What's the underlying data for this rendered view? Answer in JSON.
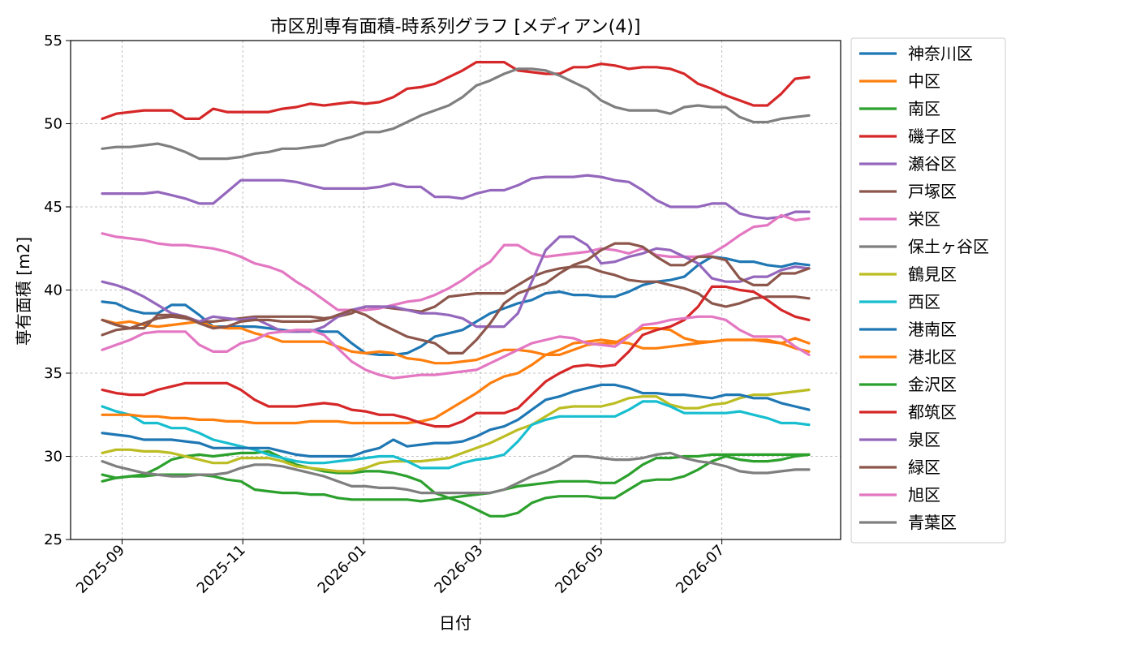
{
  "chart_data": {
    "type": "line",
    "title": "市区別専有面積-時系列グラフ [メディアン(4)]",
    "xlabel": "日付",
    "ylabel": "専有面積 [m2]",
    "ylim": [
      25,
      55
    ],
    "xlim": [
      "2025-08-06",
      "2026-08-30"
    ],
    "yticks": [
      25,
      30,
      35,
      40,
      45,
      50,
      55
    ],
    "xticks": [
      "2025-09",
      "2025-11",
      "2026-01",
      "2026-03",
      "2026-05",
      "2026-07"
    ],
    "grid": true,
    "legend_position": "outside-right",
    "x_start": "2025-08-22",
    "x_step_days": 7,
    "series": [
      {
        "name": "神奈川区",
        "color": "#1f77b4",
        "values": [
          39.3,
          39.2,
          38.8,
          38.6,
          38.6,
          39.1,
          39.1,
          38.5,
          37.8,
          37.8,
          37.8,
          37.8,
          37.7,
          37.6,
          37.5,
          37.6,
          37.5,
          37.5,
          36.8,
          36.2,
          36.1,
          36.1,
          36.2,
          36.6,
          37.2,
          37.4,
          37.6,
          38.1,
          38.6,
          38.9,
          39.2,
          39.4,
          39.8,
          39.9,
          39.7,
          39.7,
          39.6,
          39.6,
          39.9,
          40.3,
          40.5,
          40.6,
          40.8,
          41.5,
          42.0,
          41.9,
          41.7,
          41.7,
          41.5,
          41.4,
          41.6,
          41.5
        ]
      },
      {
        "name": "中区",
        "color": "#ff7f0e",
        "values": [
          38.2,
          38.0,
          38.1,
          37.9,
          37.8,
          37.9,
          38.0,
          38.1,
          37.8,
          37.7,
          37.7,
          37.4,
          37.2,
          36.9,
          36.9,
          36.9,
          36.9,
          36.6,
          36.3,
          36.2,
          36.3,
          36.2,
          35.9,
          35.8,
          35.6,
          35.6,
          35.7,
          35.8,
          36.1,
          36.4,
          36.4,
          36.3,
          36.1,
          36.1,
          36.4,
          36.7,
          36.8,
          36.8,
          37.3,
          37.7,
          37.7,
          37.6,
          37.1,
          36.9,
          36.9,
          37.0,
          37.0,
          37.0,
          36.9,
          36.8,
          37.1,
          36.8
        ]
      },
      {
        "name": "南区",
        "color": "#2ca02c",
        "values": [
          28.9,
          28.7,
          28.8,
          28.9,
          29.3,
          29.8,
          30.0,
          30.1,
          30.0,
          30.1,
          30.2,
          30.2,
          30.3,
          29.9,
          29.5,
          29.3,
          29.1,
          29.0,
          29.0,
          29.1,
          29.1,
          29.0,
          28.8,
          28.5,
          27.8,
          27.5,
          27.2,
          26.8,
          26.4,
          26.4,
          26.6,
          27.2,
          27.5,
          27.6,
          27.6,
          27.6,
          27.5,
          27.5,
          28.0,
          28.5,
          28.6,
          28.6,
          28.8,
          29.2,
          29.7,
          30.0,
          29.8,
          29.7,
          29.7,
          29.8,
          30.0,
          30.1
        ]
      },
      {
        "name": "磯子区",
        "color": "#d62728",
        "values": [
          50.3,
          50.6,
          50.7,
          50.8,
          50.8,
          50.8,
          50.3,
          50.3,
          50.9,
          50.7,
          50.7,
          50.7,
          50.7,
          50.9,
          51.0,
          51.2,
          51.1,
          51.2,
          51.3,
          51.2,
          51.3,
          51.6,
          52.1,
          52.2,
          52.4,
          52.8,
          53.2,
          53.7,
          53.7,
          53.7,
          53.2,
          53.1,
          53.0,
          53.0,
          53.4,
          53.4,
          53.6,
          53.5,
          53.3,
          53.4,
          53.4,
          53.3,
          53.0,
          52.4,
          52.1,
          51.7,
          51.4,
          51.1,
          51.1,
          51.8,
          52.7,
          52.8
        ]
      },
      {
        "name": "瀬谷区",
        "color": "#9467bd",
        "values": [
          45.8,
          45.8,
          45.8,
          45.8,
          45.9,
          45.7,
          45.5,
          45.2,
          45.2,
          45.9,
          46.6,
          46.6,
          46.6,
          46.6,
          46.5,
          46.3,
          46.1,
          46.1,
          46.1,
          46.1,
          46.2,
          46.4,
          46.2,
          46.2,
          45.6,
          45.6,
          45.5,
          45.8,
          46.0,
          46.0,
          46.3,
          46.7,
          46.8,
          46.8,
          46.8,
          46.9,
          46.8,
          46.6,
          46.5,
          46.0,
          45.4,
          45.0,
          45.0,
          45.0,
          45.2,
          45.2,
          44.6,
          44.4,
          44.3,
          44.4,
          44.7,
          44.7
        ]
      },
      {
        "name": "戸塚区",
        "color": "#8c564b",
        "values": [
          37.3,
          37.6,
          37.7,
          38.0,
          38.3,
          38.4,
          38.3,
          38.1,
          38.1,
          38.2,
          38.3,
          38.4,
          38.4,
          38.4,
          38.4,
          38.4,
          38.3,
          38.4,
          38.6,
          39.0,
          39.0,
          38.9,
          38.8,
          38.7,
          39.0,
          39.6,
          39.7,
          39.8,
          39.8,
          39.8,
          40.3,
          40.8,
          41.1,
          41.3,
          41.4,
          41.4,
          41.1,
          40.9,
          40.6,
          40.5,
          40.5,
          40.3,
          40.1,
          39.8,
          39.2,
          39.0,
          39.2,
          39.5,
          39.6,
          39.6,
          39.6,
          39.5
        ]
      },
      {
        "name": "栄区",
        "color": "#e377c2",
        "values": [
          43.4,
          43.2,
          43.1,
          43.0,
          42.8,
          42.7,
          42.7,
          42.6,
          42.5,
          42.3,
          42.0,
          41.6,
          41.4,
          41.1,
          40.5,
          40.0,
          39.4,
          38.8,
          38.8,
          38.8,
          38.9,
          39.1,
          39.3,
          39.4,
          39.7,
          40.1,
          40.6,
          41.2,
          41.7,
          42.7,
          42.7,
          42.2,
          42.0,
          42.1,
          42.2,
          42.3,
          42.5,
          42.4,
          42.2,
          42.5,
          42.1,
          42.0,
          42.0,
          42.0,
          42.2,
          42.7,
          43.3,
          43.8,
          43.9,
          44.5,
          44.2,
          44.3
        ]
      },
      {
        "name": "保土ヶ谷区",
        "color": "#7f7f7f",
        "values": [
          48.5,
          48.6,
          48.6,
          48.7,
          48.8,
          48.6,
          48.3,
          47.9,
          47.9,
          47.9,
          48.0,
          48.2,
          48.3,
          48.5,
          48.5,
          48.6,
          48.7,
          49.0,
          49.2,
          49.5,
          49.5,
          49.7,
          50.1,
          50.5,
          50.8,
          51.1,
          51.6,
          52.3,
          52.6,
          53.0,
          53.3,
          53.3,
          53.2,
          52.9,
          52.5,
          52.1,
          51.4,
          51.0,
          50.8,
          50.8,
          50.8,
          50.6,
          51.0,
          51.1,
          51.0,
          51.0,
          50.4,
          50.1,
          50.1,
          50.3,
          50.4,
          50.5
        ]
      },
      {
        "name": "鶴見区",
        "color": "#bcbd22",
        "values": [
          30.2,
          30.4,
          30.4,
          30.3,
          30.3,
          30.2,
          30.0,
          29.8,
          29.6,
          29.6,
          29.9,
          29.9,
          29.9,
          29.7,
          29.4,
          29.3,
          29.2,
          29.1,
          29.1,
          29.3,
          29.6,
          29.7,
          29.7,
          29.7,
          29.8,
          29.9,
          30.2,
          30.5,
          30.8,
          31.2,
          31.6,
          31.9,
          32.4,
          32.9,
          33.0,
          33.0,
          33.0,
          33.2,
          33.5,
          33.6,
          33.6,
          33.1,
          32.9,
          32.9,
          33.1,
          33.2,
          33.5,
          33.7,
          33.7,
          33.8,
          33.9,
          34.0
        ]
      },
      {
        "name": "西区",
        "color": "#17becf",
        "values": [
          33.0,
          32.7,
          32.5,
          32.0,
          32.0,
          31.7,
          31.7,
          31.4,
          31.0,
          30.8,
          30.6,
          30.4,
          30.1,
          29.9,
          29.7,
          29.6,
          29.6,
          29.7,
          29.8,
          29.9,
          30.0,
          30.0,
          29.7,
          29.3,
          29.3,
          29.3,
          29.6,
          29.8,
          29.9,
          30.1,
          30.9,
          31.9,
          32.2,
          32.4,
          32.4,
          32.4,
          32.4,
          32.4,
          32.8,
          33.3,
          33.3,
          33.0,
          32.6,
          32.6,
          32.6,
          32.6,
          32.7,
          32.5,
          32.3,
          32.0,
          32.0,
          31.9
        ]
      },
      {
        "name": "港南区",
        "color": "#1f77b4",
        "values": [
          31.4,
          31.3,
          31.2,
          31.0,
          31.0,
          31.0,
          30.9,
          30.8,
          30.5,
          30.5,
          30.5,
          30.5,
          30.5,
          30.3,
          30.1,
          30.0,
          30.0,
          30.0,
          30.0,
          30.3,
          30.5,
          31.0,
          30.6,
          30.7,
          30.8,
          30.8,
          30.9,
          31.2,
          31.6,
          31.8,
          32.2,
          32.8,
          33.4,
          33.6,
          33.9,
          34.1,
          34.3,
          34.3,
          34.1,
          33.8,
          33.8,
          33.7,
          33.7,
          33.6,
          33.5,
          33.7,
          33.7,
          33.5,
          33.5,
          33.2,
          33.0,
          32.8
        ]
      },
      {
        "name": "港北区",
        "color": "#ff7f0e",
        "values": [
          32.5,
          32.5,
          32.5,
          32.4,
          32.4,
          32.3,
          32.3,
          32.2,
          32.2,
          32.1,
          32.1,
          32.0,
          32.0,
          32.0,
          32.0,
          32.1,
          32.1,
          32.1,
          32.0,
          32.0,
          32.0,
          32.0,
          32.0,
          32.1,
          32.3,
          32.8,
          33.3,
          33.8,
          34.4,
          34.8,
          35.0,
          35.5,
          36.1,
          36.4,
          36.8,
          36.9,
          37.0,
          36.9,
          36.8,
          36.5,
          36.5,
          36.6,
          36.7,
          36.8,
          36.9,
          37.0,
          37.0,
          37.0,
          37.0,
          36.8,
          36.5,
          36.3
        ]
      },
      {
        "name": "金沢区",
        "color": "#2ca02c",
        "values": [
          28.5,
          28.7,
          28.8,
          28.8,
          28.9,
          28.9,
          28.9,
          28.9,
          28.8,
          28.6,
          28.5,
          28.0,
          27.9,
          27.8,
          27.8,
          27.7,
          27.7,
          27.5,
          27.4,
          27.4,
          27.4,
          27.4,
          27.4,
          27.3,
          27.4,
          27.5,
          27.6,
          27.7,
          27.8,
          28.0,
          28.2,
          28.3,
          28.4,
          28.5,
          28.5,
          28.5,
          28.4,
          28.4,
          28.9,
          29.5,
          29.9,
          29.9,
          30.0,
          30.0,
          30.1,
          30.1,
          30.1,
          30.1,
          30.1,
          30.1,
          30.1,
          30.1
        ]
      },
      {
        "name": "都筑区",
        "color": "#d62728",
        "values": [
          34.0,
          33.8,
          33.7,
          33.7,
          34.0,
          34.2,
          34.4,
          34.4,
          34.4,
          34.4,
          34.0,
          33.4,
          33.0,
          33.0,
          33.0,
          33.1,
          33.2,
          33.1,
          32.8,
          32.7,
          32.5,
          32.5,
          32.3,
          32.0,
          31.8,
          31.8,
          32.1,
          32.6,
          32.6,
          32.6,
          32.9,
          33.7,
          34.5,
          35.0,
          35.4,
          35.5,
          35.4,
          35.5,
          36.3,
          37.3,
          37.6,
          37.8,
          38.2,
          39.0,
          40.2,
          40.2,
          40.0,
          39.9,
          39.4,
          38.8,
          38.4,
          38.2
        ]
      },
      {
        "name": "泉区",
        "color": "#9467bd",
        "values": [
          40.5,
          40.3,
          40.0,
          39.6,
          39.1,
          38.6,
          38.4,
          38.1,
          38.4,
          38.3,
          38.2,
          38.3,
          37.9,
          37.5,
          37.5,
          37.5,
          37.8,
          38.4,
          38.8,
          39.0,
          39.0,
          39.0,
          38.8,
          38.6,
          38.6,
          38.5,
          38.3,
          37.8,
          37.8,
          37.8,
          38.6,
          40.5,
          42.4,
          43.2,
          43.2,
          42.7,
          41.6,
          41.7,
          42.0,
          42.2,
          42.5,
          42.4,
          42.0,
          41.6,
          40.7,
          40.5,
          40.5,
          40.8,
          40.8,
          41.2,
          41.4,
          41.3
        ]
      },
      {
        "name": "緑区",
        "color": "#8c564b",
        "values": [
          38.2,
          37.9,
          37.7,
          37.7,
          38.5,
          38.5,
          38.4,
          38.0,
          37.7,
          37.8,
          38.1,
          38.2,
          38.2,
          38.1,
          38.1,
          38.1,
          38.2,
          38.5,
          38.8,
          38.5,
          38.0,
          37.6,
          37.2,
          37.0,
          36.8,
          36.2,
          36.2,
          37.0,
          38.0,
          39.2,
          39.8,
          40.1,
          40.4,
          41.0,
          41.5,
          41.8,
          42.4,
          42.8,
          42.8,
          42.6,
          42.0,
          41.5,
          41.5,
          42.0,
          42.0,
          41.8,
          40.7,
          40.3,
          40.3,
          41.0,
          41.0,
          41.3
        ]
      },
      {
        "name": "旭区",
        "color": "#e377c2",
        "values": [
          36.4,
          36.7,
          37.0,
          37.4,
          37.5,
          37.5,
          37.5,
          36.7,
          36.3,
          36.3,
          36.8,
          37.0,
          37.4,
          37.5,
          37.6,
          37.6,
          37.3,
          36.5,
          35.7,
          35.2,
          34.9,
          34.7,
          34.8,
          34.9,
          34.9,
          35.0,
          35.1,
          35.2,
          35.6,
          36.0,
          36.4,
          36.8,
          37.0,
          37.2,
          37.1,
          36.8,
          36.7,
          36.6,
          37.2,
          37.9,
          38.0,
          38.2,
          38.3,
          38.4,
          38.4,
          38.2,
          37.6,
          37.2,
          37.2,
          37.2,
          36.6,
          36.1
        ]
      },
      {
        "name": "青葉区",
        "color": "#7f7f7f",
        "values": [
          29.7,
          29.4,
          29.2,
          29.0,
          28.9,
          28.8,
          28.8,
          28.9,
          28.9,
          29.0,
          29.3,
          29.5,
          29.5,
          29.4,
          29.2,
          29.0,
          28.8,
          28.5,
          28.2,
          28.2,
          28.1,
          28.1,
          28.0,
          27.8,
          27.8,
          27.8,
          27.8,
          27.8,
          27.8,
          28.0,
          28.4,
          28.8,
          29.1,
          29.5,
          30.0,
          30.0,
          29.9,
          29.8,
          29.8,
          29.9,
          30.1,
          30.2,
          29.9,
          29.7,
          29.6,
          29.4,
          29.1,
          29.0,
          29.0,
          29.1,
          29.2,
          29.2
        ]
      }
    ]
  }
}
